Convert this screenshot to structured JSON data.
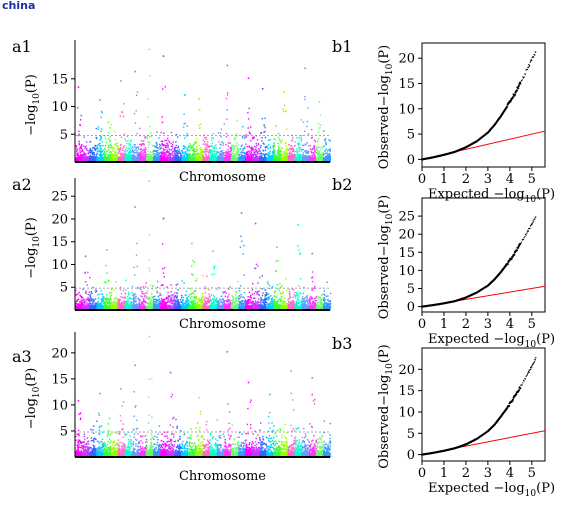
{
  "watermark": "china",
  "colors": {
    "axis": "#000000",
    "threshold": "#888888",
    "null_line": "#ff0000",
    "qq_points": "#000000",
    "palette": [
      "#ff00ff",
      "#cc33ff",
      "#3366ff",
      "#00ccff",
      "#33ff33",
      "#99ff00",
      "#ff66cc",
      "#00ffcc",
      "#6699ff",
      "#ff33ff",
      "#66ff66",
      "#3399ff"
    ]
  },
  "chart_data": [
    {
      "type": "scatter",
      "subtype": "manhattan",
      "panel_label": "a1",
      "xlabel": "Chromosome",
      "ylabel": "−log10(P)",
      "ylim": [
        0,
        22
      ],
      "yticks": [
        5,
        10,
        15
      ],
      "threshold": 4.8,
      "chromosome_count": 36,
      "top_hits": [
        {
          "chromosome": 1,
          "value": 13.5
        },
        {
          "chromosome": 4,
          "value": 11.2
        },
        {
          "chromosome": 7,
          "value": 14.6
        },
        {
          "chromosome": 9,
          "value": 16.3
        },
        {
          "chromosome": 11,
          "value": 20.3
        },
        {
          "chromosome": 13,
          "value": 19.1
        },
        {
          "chromosome": 16,
          "value": 12.1
        },
        {
          "chromosome": 18,
          "value": 11.4
        },
        {
          "chromosome": 22,
          "value": 17.4
        },
        {
          "chromosome": 25,
          "value": 15.1
        },
        {
          "chromosome": 27,
          "value": 13.2
        },
        {
          "chromosome": 30,
          "value": 12.6
        },
        {
          "chromosome": 33,
          "value": 16.9
        },
        {
          "chromosome": 35,
          "value": 10.8
        }
      ]
    },
    {
      "type": "scatter",
      "subtype": "manhattan",
      "panel_label": "a2",
      "xlabel": "Chromosome",
      "ylabel": "−log10(P)",
      "ylim": [
        0,
        29
      ],
      "yticks": [
        5,
        10,
        15,
        20,
        25
      ],
      "threshold": 4.8,
      "chromosome_count": 36,
      "top_hits": [
        {
          "chromosome": 2,
          "value": 11.8
        },
        {
          "chromosome": 5,
          "value": 13.2
        },
        {
          "chromosome": 9,
          "value": 22.6
        },
        {
          "chromosome": 11,
          "value": 28.3
        },
        {
          "chromosome": 13,
          "value": 20.1
        },
        {
          "chromosome": 17,
          "value": 14.6
        },
        {
          "chromosome": 20,
          "value": 12.9
        },
        {
          "chromosome": 24,
          "value": 21.3
        },
        {
          "chromosome": 26,
          "value": 19.0
        },
        {
          "chromosome": 29,
          "value": 13.8
        },
        {
          "chromosome": 32,
          "value": 18.7
        },
        {
          "chromosome": 34,
          "value": 12.4
        }
      ]
    },
    {
      "type": "scatter",
      "subtype": "manhattan",
      "panel_label": "a3",
      "xlabel": "Chromosome",
      "ylabel": "−log10(P)",
      "ylim": [
        0,
        24
      ],
      "yticks": [
        5,
        10,
        15,
        20
      ],
      "threshold": 4.8,
      "chromosome_count": 36,
      "top_hits": [
        {
          "chromosome": 1,
          "value": 10.8
        },
        {
          "chromosome": 4,
          "value": 12.2
        },
        {
          "chromosome": 7,
          "value": 13.1
        },
        {
          "chromosome": 9,
          "value": 17.6
        },
        {
          "chromosome": 11,
          "value": 23.1
        },
        {
          "chromosome": 14,
          "value": 16.2
        },
        {
          "chromosome": 18,
          "value": 11.4
        },
        {
          "chromosome": 22,
          "value": 20.2
        },
        {
          "chromosome": 25,
          "value": 14.3
        },
        {
          "chromosome": 28,
          "value": 12.0
        },
        {
          "chromosome": 31,
          "value": 16.5
        },
        {
          "chromosome": 34,
          "value": 15.2
        }
      ]
    },
    {
      "type": "scatter",
      "subtype": "qq",
      "panel_label": "b1",
      "xlabel": "Expected −log10(P)",
      "ylabel": "Observed−log10(P)",
      "xlim": [
        0,
        5.6
      ],
      "ylim": [
        -1.5,
        23
      ],
      "xticks": [
        0,
        1,
        2,
        3,
        4,
        5
      ],
      "yticks": [
        0,
        5,
        10,
        15,
        20
      ],
      "null_line": {
        "x": [
          0,
          5.6
        ],
        "y": [
          0,
          5.6
        ]
      },
      "curve": {
        "x": [
          0,
          0.5,
          1.0,
          1.5,
          2.0,
          2.5,
          3.0,
          3.3,
          3.6,
          3.9,
          4.2,
          4.5,
          4.8,
          5.0,
          5.2
        ],
        "y": [
          0,
          0.4,
          0.9,
          1.5,
          2.4,
          3.6,
          5.3,
          6.8,
          8.6,
          10.6,
          12.8,
          15.2,
          17.9,
          19.7,
          21.3
        ]
      }
    },
    {
      "type": "scatter",
      "subtype": "qq",
      "panel_label": "b2",
      "xlabel": "Expected −log10(P)",
      "ylabel": "Observed−log10(P)",
      "xlim": [
        0,
        5.6
      ],
      "ylim": [
        -1.5,
        30
      ],
      "xticks": [
        0,
        1,
        2,
        3,
        4,
        5
      ],
      "yticks": [
        0,
        5,
        10,
        15,
        20,
        25
      ],
      "null_line": {
        "x": [
          0,
          5.6
        ],
        "y": [
          0,
          5.6
        ]
      },
      "curve": {
        "x": [
          0,
          0.5,
          1.0,
          1.5,
          2.0,
          2.5,
          3.0,
          3.3,
          3.6,
          3.9,
          4.2,
          4.5,
          4.8,
          5.0,
          5.2
        ],
        "y": [
          0,
          0.4,
          0.9,
          1.5,
          2.5,
          3.9,
          5.8,
          7.5,
          9.6,
          12.0,
          14.6,
          17.5,
          20.6,
          22.7,
          25.2
        ]
      }
    },
    {
      "type": "scatter",
      "subtype": "qq",
      "panel_label": "b3",
      "xlabel": "Expected −log10(P)",
      "ylabel": "Observed−log10(P)",
      "xlim": [
        0,
        5.6
      ],
      "ylim": [
        -1.5,
        25
      ],
      "xticks": [
        0,
        1,
        2,
        3,
        4,
        5
      ],
      "yticks": [
        0,
        5,
        10,
        15,
        20
      ],
      "null_line": {
        "x": [
          0,
          5.6
        ],
        "y": [
          0,
          5.6
        ]
      },
      "curve": {
        "x": [
          0,
          0.5,
          1.0,
          1.5,
          2.0,
          2.5,
          3.0,
          3.3,
          3.6,
          3.9,
          4.2,
          4.5,
          4.8,
          5.0,
          5.2
        ],
        "y": [
          0,
          0.4,
          0.9,
          1.5,
          2.4,
          3.7,
          5.5,
          7.0,
          9.0,
          11.1,
          13.5,
          16.0,
          18.8,
          20.7,
          22.9
        ]
      }
    }
  ]
}
